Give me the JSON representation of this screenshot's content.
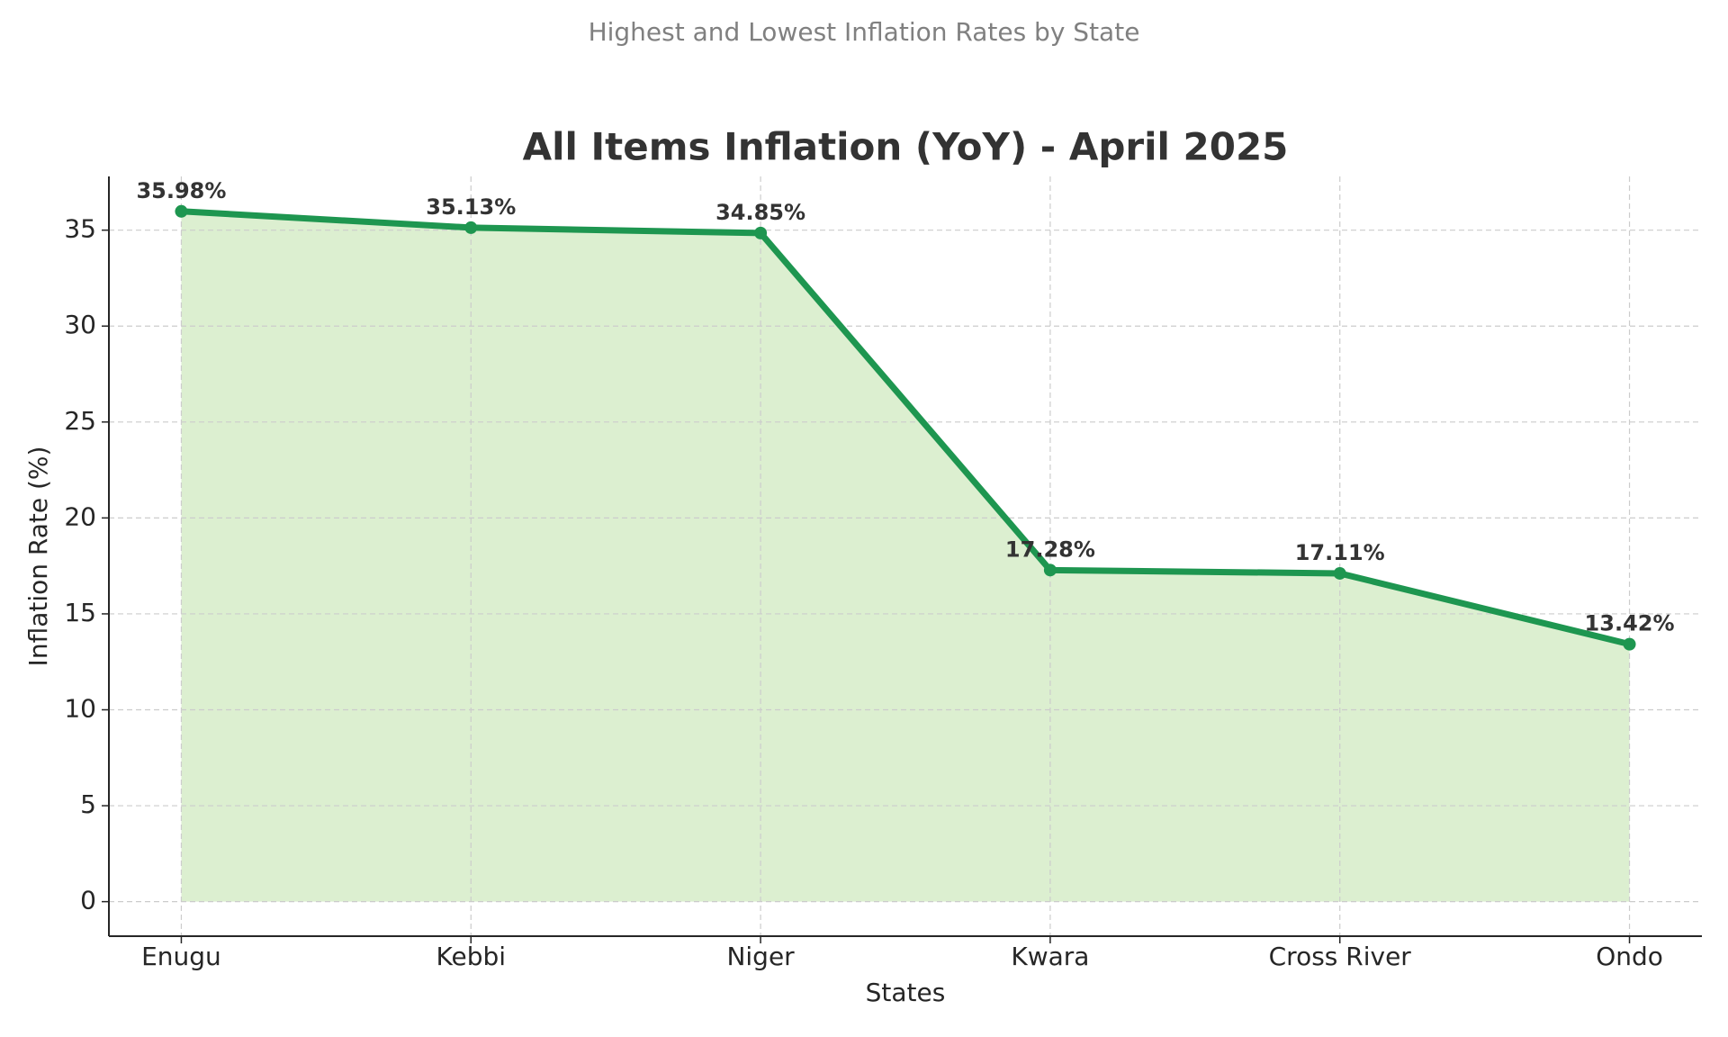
{
  "chart_data": {
    "type": "area-line",
    "suptitle": "Highest and Lowest Inflation Rates by State",
    "title": "All Items Inflation (YoY) - April 2025",
    "xlabel": "States",
    "ylabel": "Inflation Rate (%)",
    "categories": [
      "Enugu",
      "Kebbi",
      "Niger",
      "Kwara",
      "Cross River",
      "Ondo"
    ],
    "values": [
      35.98,
      35.13,
      34.85,
      17.28,
      17.11,
      13.42
    ],
    "value_labels": [
      "35.98%",
      "35.13%",
      "34.85%",
      "17.28%",
      "17.11%",
      "13.42%"
    ],
    "color": "#1e9650",
    "fill_color": "#dcefd0",
    "ylim": [
      -1.8,
      37.8
    ],
    "yticks": [
      0,
      5,
      10,
      15,
      20,
      25,
      30,
      35
    ],
    "grid": true
  }
}
